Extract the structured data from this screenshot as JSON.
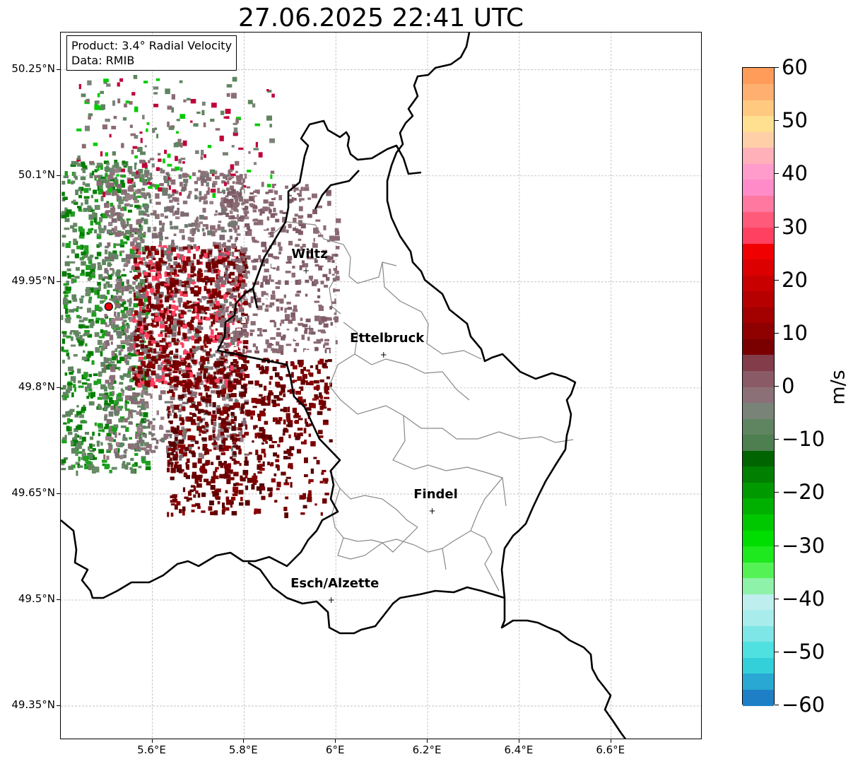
{
  "title": "27.06.2025 22:41 UTC",
  "info_box": {
    "product": "Product: 3.4° Radial Velocity",
    "data": "Data: RMIB"
  },
  "map": {
    "lat_ticks": [
      {
        "value": 50.25,
        "label": "50.25°N"
      },
      {
        "value": 50.1,
        "label": "50.1°N"
      },
      {
        "value": 49.95,
        "label": "49.95°N"
      },
      {
        "value": 49.8,
        "label": "49.8°N"
      },
      {
        "value": 49.65,
        "label": "49.65°N"
      },
      {
        "value": 49.5,
        "label": "49.5°N"
      },
      {
        "value": 49.35,
        "label": "49.35°N"
      }
    ],
    "lon_ticks": [
      {
        "value": 5.6,
        "label": "5.6°E"
      },
      {
        "value": 5.8,
        "label": "5.8°E"
      },
      {
        "value": 6.0,
        "label": "6°E"
      },
      {
        "value": 6.2,
        "label": "6.2°E"
      },
      {
        "value": 6.4,
        "label": "6.4°E"
      },
      {
        "value": 6.6,
        "label": "6.6°E"
      }
    ],
    "extent": {
      "lon_min": 5.4,
      "lon_max": 6.8,
      "lat_min": 49.3,
      "lat_max": 50.3
    },
    "radar_site": {
      "lon": 5.505,
      "lat": 49.915,
      "marker_color": "#e8000b"
    },
    "cities": [
      {
        "name": "Wiltz",
        "lon": 5.935,
        "lat": 49.966
      },
      {
        "name": "Ettelbruck",
        "lon": 6.104,
        "lat": 49.847
      },
      {
        "name": "Findel",
        "lon": 6.21,
        "lat": 49.626
      },
      {
        "name": "Esch/Alzette",
        "lon": 5.99,
        "lat": 49.5
      }
    ]
  },
  "colorbar": {
    "label": "m/s",
    "min": -60,
    "max": 60,
    "ticks": [
      {
        "value": 60,
        "label": "60"
      },
      {
        "value": 50,
        "label": "50"
      },
      {
        "value": 40,
        "label": "40"
      },
      {
        "value": 30,
        "label": "30"
      },
      {
        "value": 20,
        "label": "20"
      },
      {
        "value": 10,
        "label": "10"
      },
      {
        "value": 0,
        "label": "0"
      },
      {
        "value": -10,
        "label": "−10"
      },
      {
        "value": -20,
        "label": "−20"
      },
      {
        "value": -30,
        "label": "−30"
      },
      {
        "value": -40,
        "label": "−40"
      },
      {
        "value": -50,
        "label": "−50"
      },
      {
        "value": -60,
        "label": "−60"
      }
    ],
    "colors_bottom_to_top": [
      "#1f7fc6",
      "#28a8d2",
      "#33d0da",
      "#4fe0e0",
      "#7ee6e6",
      "#a8ecec",
      "#bfeeee",
      "#8ef2a8",
      "#55f255",
      "#1ee81e",
      "#00dd00",
      "#00c800",
      "#00b000",
      "#009900",
      "#007f00",
      "#006400",
      "#4e7f50",
      "#5f8560",
      "#7a8378",
      "#8c7078",
      "#8a5a66",
      "#833c4a",
      "#7a0000",
      "#8f0000",
      "#a30000",
      "#b60000",
      "#c80000",
      "#dc0000",
      "#f00000",
      "#ff4060",
      "#ff5a7a",
      "#ff78a0",
      "#ff8cc8",
      "#ff9ccc",
      "#ffb0b8",
      "#ffcfa8",
      "#ffe090",
      "#ffca80",
      "#ffb070",
      "#ff9c5a"
    ],
    "colors": {
      "outward_dark_red": "#7a0000",
      "mauve_gray": "#8c6c74",
      "sage_green": "#5f8560",
      "green": "#007f00"
    }
  }
}
